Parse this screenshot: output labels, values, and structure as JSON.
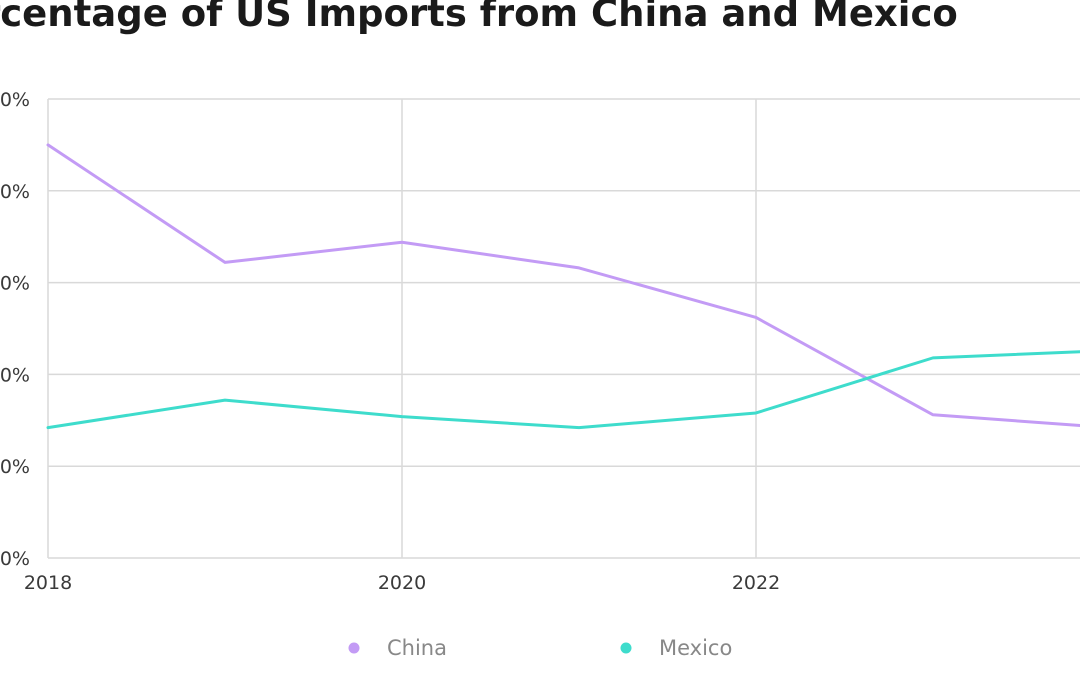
{
  "chart_data": {
    "type": "line",
    "title": "rcentage of US Imports from China and Mexico",
    "xlabel": "",
    "ylabel": "",
    "x": [
      2018,
      2019,
      2020,
      2021,
      2022,
      2023,
      2024
    ],
    "xticks": [
      {
        "value": 2018,
        "label": "2018"
      },
      {
        "value": 2020,
        "label": "2020"
      },
      {
        "value": 2022,
        "label": "2022"
      }
    ],
    "xlim": [
      2018,
      2024
    ],
    "ylim": [
      0,
      25
    ],
    "yticks": [
      {
        "value": 0,
        "label": "0%"
      },
      {
        "value": 5,
        "label": "0%"
      },
      {
        "value": 10,
        "label": "0%"
      },
      {
        "value": 15,
        "label": "0%"
      },
      {
        "value": 20,
        "label": "0%"
      },
      {
        "value": 25,
        "label": "0%"
      }
    ],
    "grid": true,
    "legend": "bottom-center",
    "series": [
      {
        "name": "China",
        "color": "#c39bf5",
        "values": [
          22.5,
          16.1,
          17.2,
          15.8,
          13.1,
          7.8,
          7.1
        ]
      },
      {
        "name": "Mexico",
        "color": "#3edccc",
        "values": [
          7.1,
          8.6,
          7.7,
          7.1,
          7.9,
          10.9,
          11.3
        ]
      }
    ]
  }
}
